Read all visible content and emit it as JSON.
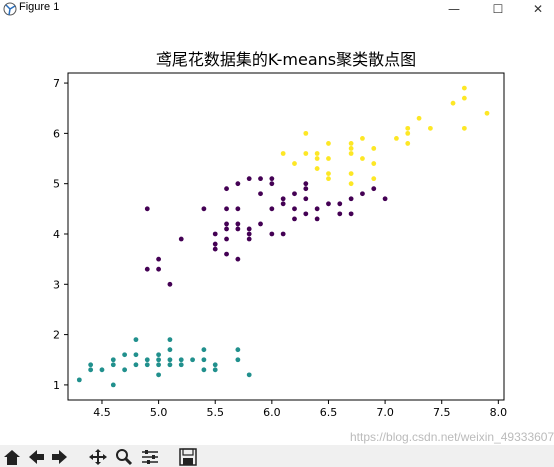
{
  "window": {
    "title": "Figure 1",
    "minimize": "—",
    "maximize": "☐",
    "close": "✕"
  },
  "watermark": "https://blog.csdn.net/weixin_49333607",
  "toolbar": {
    "icons": [
      "home-icon",
      "back-icon",
      "forward-icon",
      "pan-icon",
      "zoom-icon",
      "configure-icon",
      "save-icon"
    ]
  },
  "chart_data": {
    "type": "scatter",
    "title": "鸢尾花数据集的K-means聚类散点图",
    "xlim": [
      4.2,
      8.05
    ],
    "ylim": [
      0.7,
      7.2
    ],
    "xticks": [
      4.5,
      5.0,
      5.5,
      6.0,
      6.5,
      7.0,
      7.5,
      8.0
    ],
    "xtick_labels": [
      "4.5",
      "5.0",
      "5.5",
      "6.0",
      "6.5",
      "7.0",
      "7.5",
      "8.0"
    ],
    "yticks": [
      1,
      2,
      3,
      4,
      5,
      6,
      7
    ],
    "ytick_labels": [
      "1",
      "2",
      "3",
      "4",
      "5",
      "6",
      "7"
    ],
    "grid": false,
    "series": [
      {
        "color": "#21908d",
        "points": [
          [
            4.3,
            1.1
          ],
          [
            4.4,
            1.3
          ],
          [
            4.4,
            1.4
          ],
          [
            4.5,
            1.3
          ],
          [
            4.6,
            1.0
          ],
          [
            4.6,
            1.4
          ],
          [
            4.6,
            1.5
          ],
          [
            4.7,
            1.3
          ],
          [
            4.7,
            1.6
          ],
          [
            4.8,
            1.4
          ],
          [
            4.8,
            1.6
          ],
          [
            4.8,
            1.9
          ],
          [
            4.9,
            1.4
          ],
          [
            4.9,
            1.5
          ],
          [
            5.0,
            1.2
          ],
          [
            5.0,
            1.4
          ],
          [
            5.0,
            1.5
          ],
          [
            5.0,
            1.6
          ],
          [
            5.1,
            1.4
          ],
          [
            5.1,
            1.5
          ],
          [
            5.1,
            1.7
          ],
          [
            5.1,
            1.9
          ],
          [
            5.2,
            1.4
          ],
          [
            5.2,
            1.5
          ],
          [
            5.3,
            1.5
          ],
          [
            5.4,
            1.3
          ],
          [
            5.4,
            1.5
          ],
          [
            5.4,
            1.7
          ],
          [
            5.5,
            1.3
          ],
          [
            5.5,
            1.4
          ],
          [
            5.7,
            1.5
          ],
          [
            5.7,
            1.7
          ],
          [
            5.8,
            1.2
          ]
        ]
      },
      {
        "color": "#440154",
        "points": [
          [
            4.9,
            4.5
          ],
          [
            4.9,
            3.3
          ],
          [
            5.0,
            3.3
          ],
          [
            5.0,
            3.5
          ],
          [
            5.1,
            3.0
          ],
          [
            5.2,
            3.9
          ],
          [
            5.4,
            4.5
          ],
          [
            5.5,
            3.7
          ],
          [
            5.5,
            3.8
          ],
          [
            5.5,
            4.0
          ],
          [
            5.6,
            3.6
          ],
          [
            5.6,
            3.9
          ],
          [
            5.6,
            4.1
          ],
          [
            5.6,
            4.2
          ],
          [
            5.6,
            4.5
          ],
          [
            5.6,
            4.9
          ],
          [
            5.7,
            3.5
          ],
          [
            5.7,
            4.1
          ],
          [
            5.7,
            4.2
          ],
          [
            5.7,
            4.5
          ],
          [
            5.7,
            5.0
          ],
          [
            5.8,
            3.9
          ],
          [
            5.8,
            4.0
          ],
          [
            5.8,
            4.1
          ],
          [
            5.8,
            5.1
          ],
          [
            5.9,
            4.2
          ],
          [
            5.9,
            4.8
          ],
          [
            5.9,
            5.1
          ],
          [
            6.0,
            4.0
          ],
          [
            6.0,
            4.5
          ],
          [
            6.0,
            5.0
          ],
          [
            6.0,
            5.1
          ],
          [
            6.1,
            4.0
          ],
          [
            6.1,
            4.6
          ],
          [
            6.1,
            4.7
          ],
          [
            6.2,
            4.3
          ],
          [
            6.2,
            4.5
          ],
          [
            6.2,
            4.8
          ],
          [
            6.3,
            4.4
          ],
          [
            6.3,
            4.7
          ],
          [
            6.3,
            4.9
          ],
          [
            6.3,
            5.0
          ],
          [
            6.4,
            4.3
          ],
          [
            6.4,
            4.5
          ],
          [
            6.5,
            4.6
          ],
          [
            6.6,
            4.4
          ],
          [
            6.6,
            4.6
          ],
          [
            6.7,
            4.4
          ],
          [
            6.7,
            4.7
          ],
          [
            6.8,
            4.8
          ],
          [
            6.9,
            4.9
          ],
          [
            7.0,
            4.7
          ]
        ]
      },
      {
        "color": "#fde725",
        "points": [
          [
            6.1,
            5.6
          ],
          [
            6.2,
            5.4
          ],
          [
            6.3,
            5.6
          ],
          [
            6.3,
            6.0
          ],
          [
            6.4,
            5.3
          ],
          [
            6.4,
            5.5
          ],
          [
            6.4,
            5.6
          ],
          [
            6.5,
            5.1
          ],
          [
            6.5,
            5.2
          ],
          [
            6.5,
            5.5
          ],
          [
            6.5,
            5.8
          ],
          [
            6.7,
            5.0
          ],
          [
            6.7,
            5.2
          ],
          [
            6.7,
            5.6
          ],
          [
            6.7,
            5.7
          ],
          [
            6.7,
            5.8
          ],
          [
            6.8,
            5.5
          ],
          [
            6.8,
            5.9
          ],
          [
            6.9,
            5.1
          ],
          [
            6.9,
            5.4
          ],
          [
            6.9,
            5.7
          ],
          [
            7.1,
            5.9
          ],
          [
            7.2,
            5.8
          ],
          [
            7.2,
            6.0
          ],
          [
            7.2,
            6.1
          ],
          [
            7.3,
            6.3
          ],
          [
            7.4,
            6.1
          ],
          [
            7.6,
            6.6
          ],
          [
            7.7,
            6.1
          ],
          [
            7.7,
            6.7
          ],
          [
            7.7,
            6.9
          ],
          [
            7.9,
            6.4
          ]
        ]
      }
    ]
  }
}
